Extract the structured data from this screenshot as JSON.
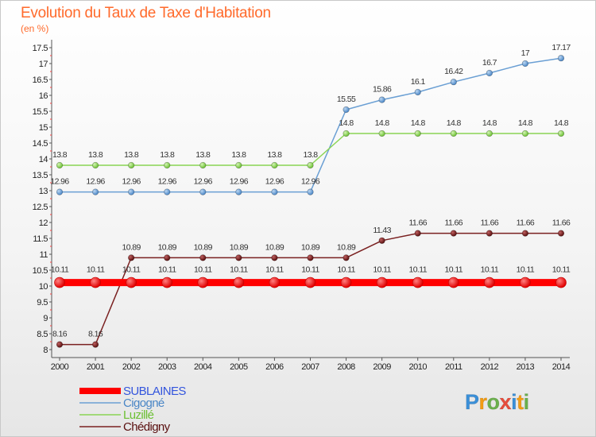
{
  "header": {
    "title": "Evolution du Taux de Taxe d'Habitation",
    "unit": "(en %)"
  },
  "logo": {
    "text": "Proxiti"
  },
  "chart_data": {
    "type": "line",
    "title": "Evolution du Taux de Taxe d'Habitation",
    "subtitle": "(en %)",
    "xlabel": "",
    "ylabel": "",
    "x": [
      2000,
      2001,
      2002,
      2003,
      2004,
      2005,
      2006,
      2007,
      2008,
      2009,
      2010,
      2011,
      2012,
      2013,
      2014
    ],
    "ylim": [
      8,
      17.5
    ],
    "yticks": [
      8,
      8.5,
      9,
      9.5,
      10,
      10.5,
      11,
      11.5,
      12,
      12.5,
      13,
      13.5,
      14,
      14.5,
      15,
      15.5,
      16,
      16.5,
      17,
      17.5
    ],
    "grid": false,
    "legend_position": "bottom-left",
    "series": [
      {
        "name": "SUBLAINES",
        "color": "#ff0000",
        "values": [
          10.11,
          10.11,
          10.11,
          10.11,
          10.11,
          10.11,
          10.11,
          10.11,
          10.11,
          10.11,
          10.11,
          10.11,
          10.11,
          10.11,
          10.11
        ],
        "labels": [
          "10.11",
          "10.11",
          "10.11",
          "10.11",
          "10.11",
          "10.11",
          "10.11",
          "10.11",
          "10.11",
          "10.11",
          "10.11",
          "10.11",
          "10.11",
          "10.11",
          "10.11"
        ]
      },
      {
        "name": "Cigogné",
        "color": "#6a9fd4",
        "values": [
          12.96,
          12.96,
          12.96,
          12.96,
          12.96,
          12.96,
          12.96,
          12.96,
          15.55,
          15.86,
          16.1,
          16.42,
          16.7,
          17,
          17.17
        ],
        "labels": [
          "12.96",
          "12.96",
          "12.96",
          "12.96",
          "12.96",
          "12.96",
          "12.96",
          "12.96",
          "15.55",
          "15.86",
          "16.1",
          "16.42",
          "16.7",
          "17",
          "17.17"
        ]
      },
      {
        "name": "Luzillé",
        "color": "#8ad454",
        "values": [
          13.8,
          13.8,
          13.8,
          13.8,
          13.8,
          13.8,
          13.8,
          13.8,
          14.8,
          14.8,
          14.8,
          14.8,
          14.8,
          14.8,
          14.8
        ],
        "labels": [
          "13.8",
          "13.8",
          "13.8",
          "13.8",
          "13.8",
          "13.8",
          "13.8",
          "13.8",
          "14.8",
          "14.8",
          "14.8",
          "14.8",
          "14.8",
          "14.8",
          "14.8"
        ]
      },
      {
        "name": "Chédigny",
        "color": "#7a2020",
        "values": [
          8.16,
          8.16,
          10.89,
          10.89,
          10.89,
          10.89,
          10.89,
          10.89,
          10.89,
          11.43,
          11.66,
          11.66,
          11.66,
          11.66,
          11.66
        ],
        "labels": [
          "8.16",
          "8.16",
          "10.89",
          "10.89",
          "10.89",
          "10.89",
          "10.89",
          "10.89",
          "10.89",
          "11.43",
          "11.66",
          "11.66",
          "11.66",
          "11.66",
          "11.66"
        ]
      }
    ]
  }
}
